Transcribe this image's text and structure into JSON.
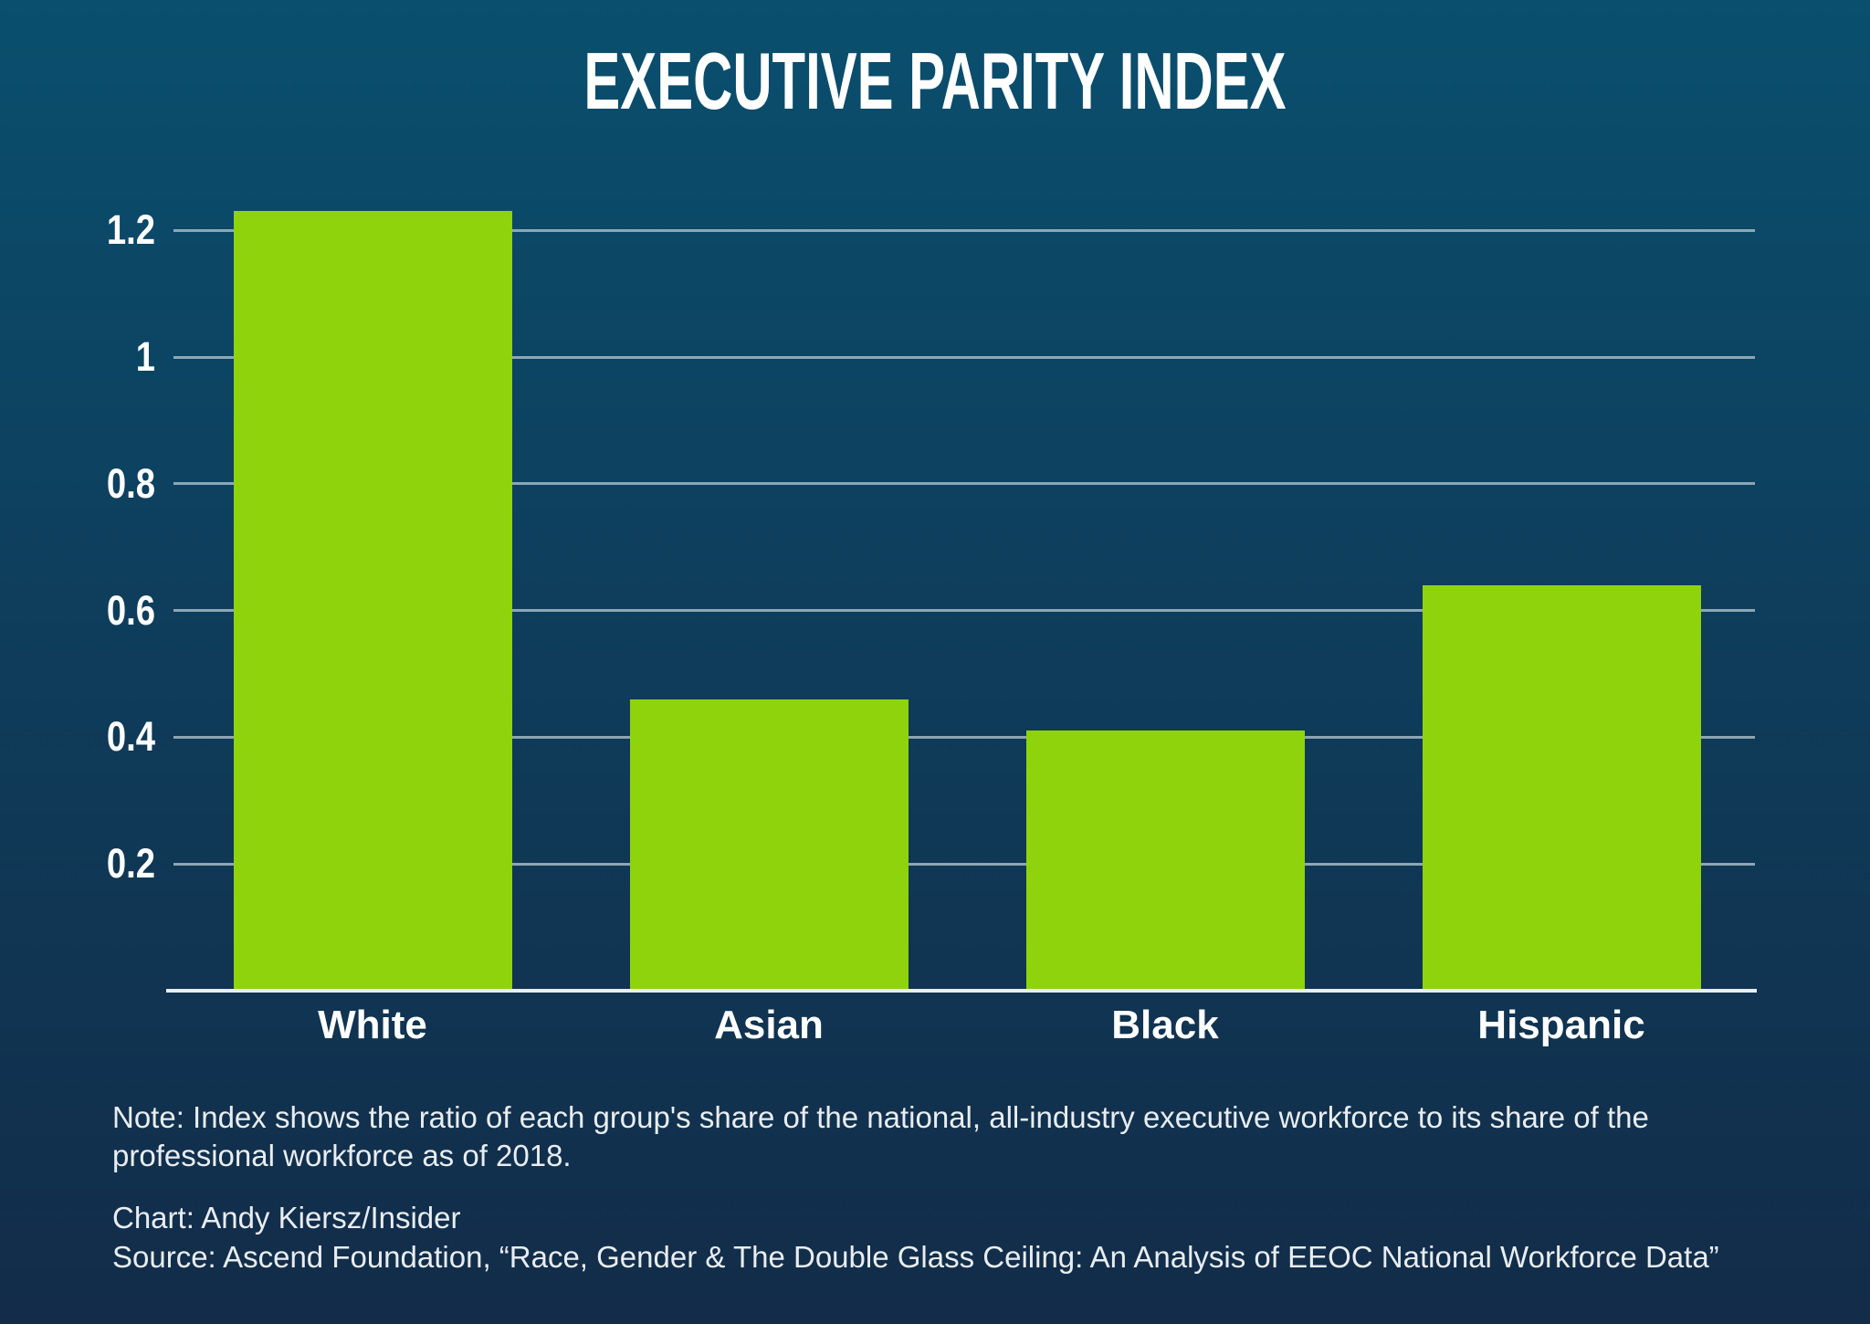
{
  "chart_data": {
    "type": "bar",
    "title": "EXECUTIVE PARITY INDEX",
    "categories": [
      "White",
      "Asian",
      "Black",
      "Hispanic"
    ],
    "values": [
      1.23,
      0.46,
      0.41,
      0.64
    ],
    "xlabel": "",
    "ylabel": "",
    "ylim": [
      0,
      1.25
    ],
    "yticks": [
      0.2,
      0.4,
      0.6,
      0.8,
      1,
      1.2
    ],
    "ytick_labels": [
      "0.2",
      "0.4",
      "0.6",
      "0.8",
      "1",
      "1.2"
    ],
    "grid": true,
    "legend": false,
    "bar_color": "#8ed30c"
  },
  "colors": {
    "background_top": "#0a4f6e",
    "background_bottom": "#122c49",
    "bar": "#8ed30c",
    "gridline": "#a3b8c4",
    "axis_line": "#e9eef2",
    "text": "#ffffff"
  },
  "footer": {
    "note": "Note: Index shows the ratio of each group's share of the national, all-industry executive workforce to its share of the professional workforce as of 2018.",
    "chart_credit": "Chart: Andy Kiersz/Insider",
    "source": "Source: Ascend Foundation, “Race, Gender & The Double Glass Ceiling: An Analysis of EEOC National Workforce Data”"
  }
}
